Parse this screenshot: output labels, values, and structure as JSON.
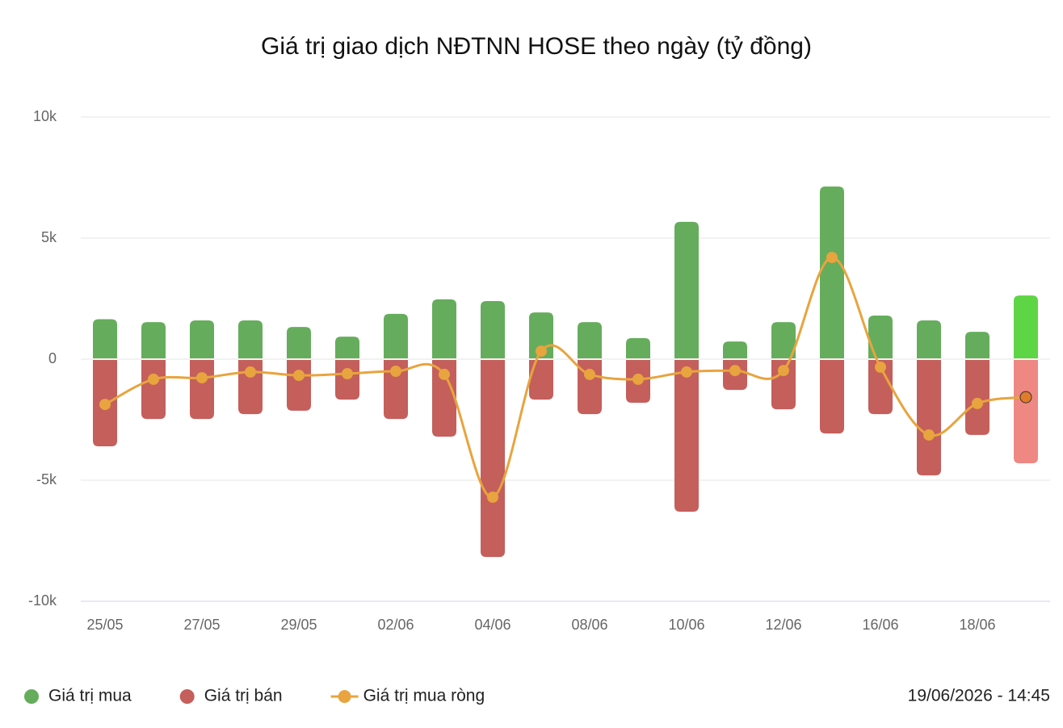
{
  "chart_data": {
    "type": "bar-line",
    "title": "Giá trị giao dịch NĐTNN HOSE theo ngày (tỷ đồng)",
    "timestamp": "19/06/2026 - 14:45",
    "categories": [
      "25/05",
      null,
      "27/05",
      null,
      "29/05",
      null,
      "02/06",
      null,
      "04/06",
      null,
      "08/06",
      null,
      "10/06",
      null,
      "12/06",
      null,
      "16/06",
      null,
      "18/06",
      null
    ],
    "series": [
      {
        "name": "Giá trị mua",
        "type": "bar",
        "color": "#65ad5c",
        "highlight_color": "#5ed545",
        "values": [
          1650,
          1530,
          1600,
          1600,
          1330,
          930,
          1870,
          2470,
          2400,
          1930,
          1530,
          870,
          5670,
          730,
          1530,
          7130,
          1800,
          1600,
          1130,
          2630
        ]
      },
      {
        "name": "Giá trị bán",
        "type": "bar",
        "color": "#c45f5c",
        "highlight_color": "#ef8783",
        "values": [
          -3600,
          -2470,
          -2470,
          -2270,
          -2130,
          -1670,
          -2470,
          -3200,
          -8170,
          -1670,
          -2270,
          -1800,
          -6300,
          -1270,
          -2070,
          -3070,
          -2270,
          -4800,
          -3130,
          -4300
        ]
      },
      {
        "name": "Giá trị mua ròng",
        "type": "line",
        "color": "#e8a43e",
        "highlight_color": "#e07b2a",
        "values": [
          -1870,
          -830,
          -770,
          -530,
          -670,
          -600,
          -500,
          -630,
          -5700,
          330,
          -630,
          -830,
          -530,
          -470,
          -470,
          4200,
          -330,
          -3130,
          -1830,
          -1570
        ]
      }
    ],
    "ylim": [
      -10000,
      10000
    ],
    "yticks": [
      {
        "value": -10000,
        "label": "-10k"
      },
      {
        "value": -5000,
        "label": "-5k"
      },
      0,
      {
        "value": 5000,
        "label": "5k"
      },
      {
        "value": 10000,
        "label": "10k"
      }
    ],
    "grid": true
  }
}
